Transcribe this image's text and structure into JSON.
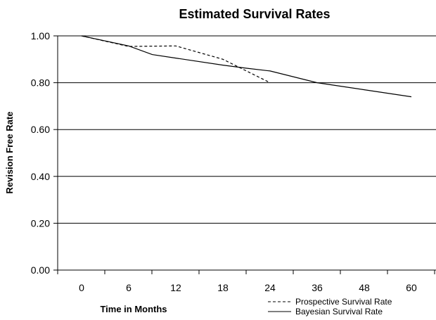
{
  "chart_data": {
    "type": "line",
    "title": "Estimated Survival Rates",
    "xlabel": "Time in Months",
    "ylabel": "Revision Free Rate",
    "categories": [
      "0",
      "6",
      "12",
      "18",
      "24",
      "36",
      "48",
      "60"
    ],
    "ylim": [
      0,
      1
    ],
    "y_ticks": [
      "0.00",
      "0.20",
      "0.40",
      "0.60",
      "0.80",
      "1.00"
    ],
    "grid": true,
    "legend_position": "bottom-right",
    "series": [
      {
        "name": "Prospective Survival Rate",
        "style": "dashed",
        "points": [
          [
            0,
            1.0
          ],
          [
            1,
            0.955
          ],
          [
            2,
            0.957
          ],
          [
            3,
            0.9
          ],
          [
            4,
            0.8
          ]
        ]
      },
      {
        "name": "Bayesian Survival Rate",
        "style": "solid",
        "points": [
          [
            0,
            1.0
          ],
          [
            1,
            0.957
          ],
          [
            1.5,
            0.92
          ],
          [
            2,
            0.905
          ],
          [
            3,
            0.875
          ],
          [
            3.5,
            0.862
          ],
          [
            4,
            0.85
          ],
          [
            5,
            0.8
          ],
          [
            6,
            0.77
          ],
          [
            7,
            0.74
          ]
        ]
      }
    ]
  }
}
